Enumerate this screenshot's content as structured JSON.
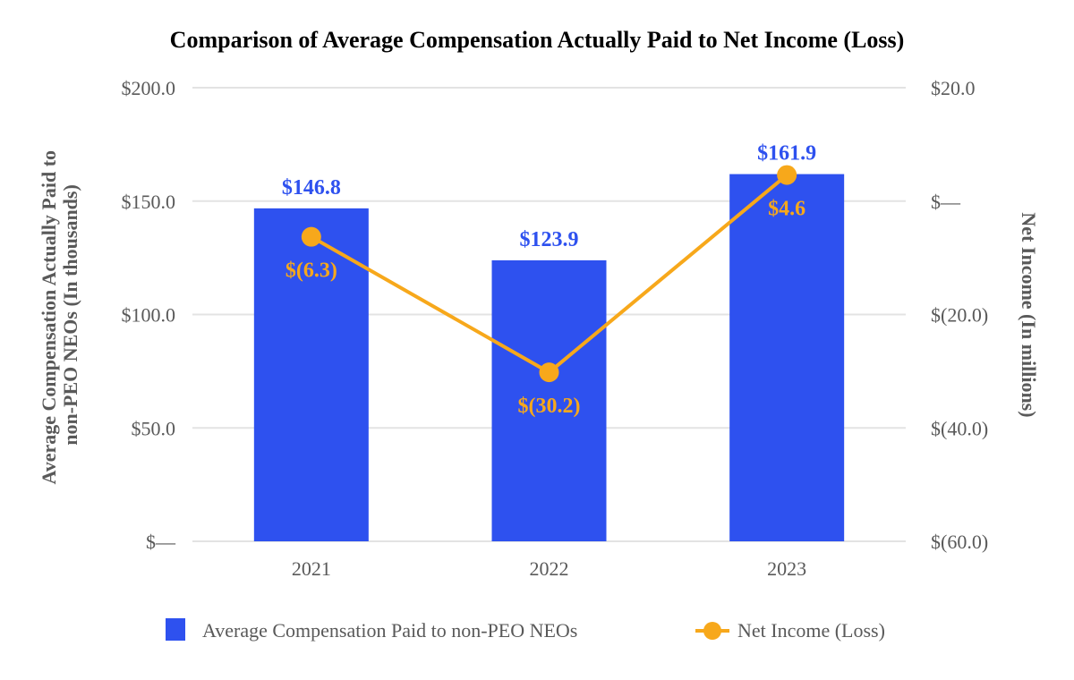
{
  "chart_data": {
    "type": "bar+line",
    "title": "Comparison of Average Compensation Actually Paid to Net Income (Loss)",
    "categories": [
      "2021",
      "2022",
      "2023"
    ],
    "series": [
      {
        "name": "Average Compensation Paid to non-PEO NEOs",
        "type": "bar",
        "axis": "left",
        "values": [
          146.8,
          123.9,
          161.9
        ],
        "labels": [
          "$146.8",
          "$123.9",
          "$161.9"
        ],
        "color": "#2e51ef"
      },
      {
        "name": "Net Income (Loss)",
        "type": "line",
        "axis": "right",
        "values": [
          -6.3,
          -30.2,
          4.6
        ],
        "labels": [
          "$(6.3)",
          "$(30.2)",
          "$4.6"
        ],
        "color": "#f7a81b"
      }
    ],
    "ylabel_left": "Average Compensation Actually Paid to non-PEO NEOs (In thousands)",
    "ylabel_left_lines": [
      "Average Compensation Actually Paid to",
      "non-PEO NEOs (In thousands)"
    ],
    "ylabel_right": "Net Income (In millions)",
    "ylim_left": [
      0,
      200
    ],
    "ylim_right": [
      -60,
      20
    ],
    "left_ticks": [
      {
        "v": 0,
        "label": "$—"
      },
      {
        "v": 50,
        "label": "$50.0"
      },
      {
        "v": 100,
        "label": "$100.0"
      },
      {
        "v": 150,
        "label": "$150.0"
      },
      {
        "v": 200,
        "label": "$200.0"
      }
    ],
    "right_ticks": [
      {
        "v": -60,
        "label": "$(60.0)"
      },
      {
        "v": -40,
        "label": "$(40.0)"
      },
      {
        "v": -20,
        "label": "$(20.0)"
      },
      {
        "v": 0,
        "label": "$—"
      },
      {
        "v": 20,
        "label": "$20.0"
      }
    ],
    "grid": true,
    "legend_position": "bottom"
  }
}
